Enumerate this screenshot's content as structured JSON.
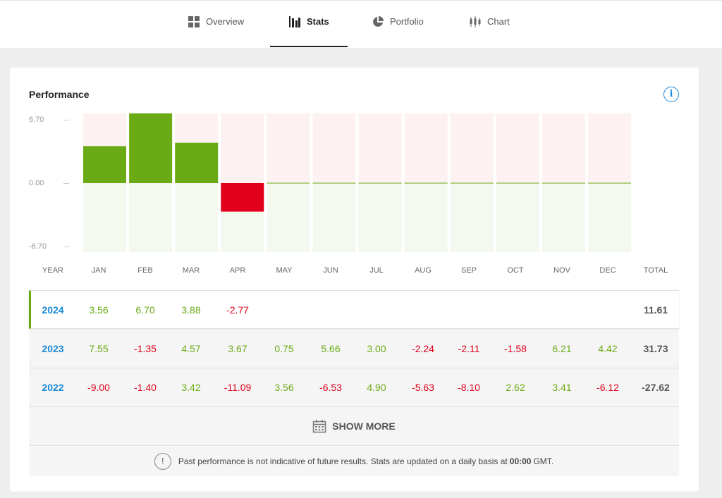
{
  "tabs": [
    {
      "label": "Overview",
      "icon": "overview-grid-icon",
      "active": false
    },
    {
      "label": "Stats",
      "icon": "stats-bars-icon",
      "active": true
    },
    {
      "label": "Portfolio",
      "icon": "pie-chart-icon",
      "active": false
    },
    {
      "label": "Chart",
      "icon": "candlestick-icon",
      "active": false
    }
  ],
  "performance": {
    "title": "Performance",
    "info_icon": "i"
  },
  "colors": {
    "positive": "#6aab15",
    "negative": "#e0001b",
    "year_link": "#1a8ad8",
    "positive_zone": "#f4f9f0",
    "negative_zone": "#fdf1f1"
  },
  "chart_data": {
    "type": "bar",
    "categories": [
      "JAN",
      "FEB",
      "MAR",
      "APR",
      "MAY",
      "JUN",
      "JUL",
      "AUG",
      "SEP",
      "OCT",
      "NOV",
      "DEC"
    ],
    "values": [
      3.56,
      6.7,
      3.88,
      -2.77,
      0,
      0,
      0,
      0,
      0,
      0,
      0,
      0
    ],
    "ylim": [
      -6.7,
      6.7
    ],
    "yticks": [
      "6.70",
      "0.00",
      "-6.70"
    ],
    "grid": false
  },
  "table": {
    "headers": [
      "YEAR",
      "JAN",
      "FEB",
      "MAR",
      "APR",
      "MAY",
      "JUN",
      "JUL",
      "AUG",
      "SEP",
      "OCT",
      "NOV",
      "DEC",
      "TOTAL"
    ],
    "rows": [
      {
        "year": "2024",
        "values": [
          "3.56",
          "6.70",
          "3.88",
          "-2.77",
          "",
          "",
          "",
          "",
          "",
          "",
          "",
          ""
        ],
        "total": "11.61"
      },
      {
        "year": "2023",
        "values": [
          "7.55",
          "-1.35",
          "4.57",
          "3.67",
          "0.75",
          "5.66",
          "3.00",
          "-2.24",
          "-2.11",
          "-1.58",
          "6.21",
          "4.42"
        ],
        "total": "31.73"
      },
      {
        "year": "2022",
        "values": [
          "-9.00",
          "-1.40",
          "3.42",
          "-11.09",
          "3.56",
          "-6.53",
          "4.90",
          "-5.63",
          "-8.10",
          "2.62",
          "3.41",
          "-6.12"
        ],
        "total": "-27.62"
      }
    ]
  },
  "show_more": {
    "label": "SHOW MORE",
    "icon": "calendar-icon"
  },
  "disclaimer": {
    "icon": "!",
    "text_before": "Past performance is not indicative of future results. Stats are updated on a daily basis at",
    "time": "00:00",
    "text_after": "GMT."
  }
}
